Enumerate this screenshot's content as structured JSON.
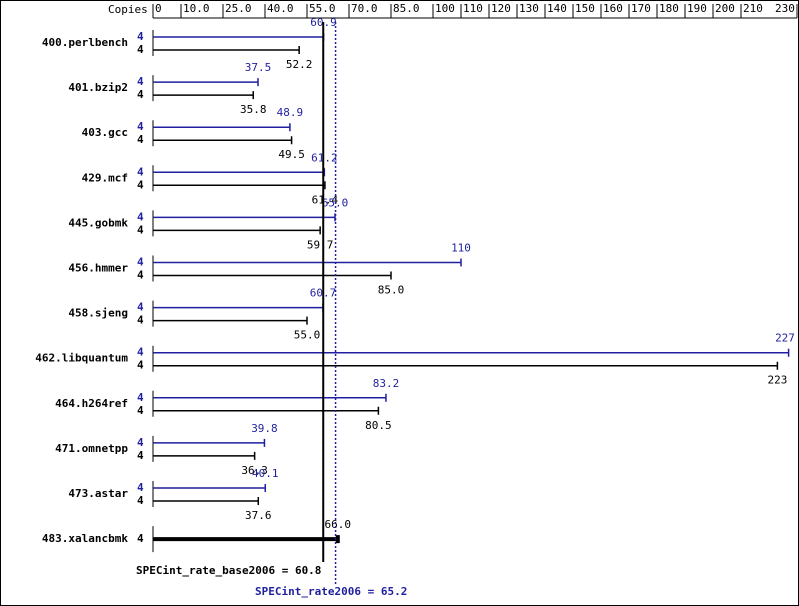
{
  "chart_data": {
    "type": "spec-bar",
    "copies_label": "Copies",
    "categories": [
      "400.perlbench",
      "401.bzip2",
      "403.gcc",
      "429.mcf",
      "445.gobmk",
      "456.hmmer",
      "458.sjeng",
      "462.libquantum",
      "464.h264ref",
      "471.omnetpp",
      "473.astar",
      "483.xalancbmk"
    ],
    "series": [
      {
        "color": "#1f1f9f",
        "copies": [
          4,
          4,
          4,
          4,
          4,
          4,
          4,
          4,
          4,
          4,
          4,
          null
        ],
        "values": [
          60.9,
          37.5,
          48.9,
          61.2,
          65.0,
          110,
          60.7,
          227,
          83.2,
          39.8,
          40.1,
          null
        ],
        "value_labels": [
          "60.9",
          "37.5",
          "48.9",
          "61.2",
          "65.0",
          "110",
          "60.7",
          "227",
          "83.2",
          "39.8",
          "40.1",
          null
        ]
      },
      {
        "color": "#000000",
        "copies": [
          4,
          4,
          4,
          4,
          4,
          4,
          4,
          4,
          4,
          4,
          4,
          4
        ],
        "values": [
          52.2,
          35.8,
          49.5,
          61.4,
          59.7,
          85.0,
          55.0,
          223,
          80.5,
          36.3,
          37.6,
          66.0
        ],
        "value_labels": [
          "52.2",
          "35.8",
          "49.5",
          "61.4",
          "59.7",
          "85.0",
          "55.0",
          "223",
          "80.5",
          "36.3",
          "37.6",
          "66.0"
        ]
      }
    ],
    "reference_lines": [
      {
        "label": "SPECint_rate_base2006 = 60.8",
        "value": 60.8,
        "color": "#000000",
        "style": "solid"
      },
      {
        "label": "SPECint_rate2006 = 65.2",
        "value": 65.2,
        "color": "#1f1f9f",
        "style": "dotted"
      }
    ],
    "xlim": [
      0,
      230
    ],
    "xticks": [
      0,
      {
        "value": 10,
        "label": "10.0"
      },
      {
        "value": 25,
        "label": "25.0"
      },
      {
        "value": 40,
        "label": "40.0"
      },
      {
        "value": 55,
        "label": "55.0"
      },
      {
        "value": 70,
        "label": "70.0"
      },
      {
        "value": 85,
        "label": "85.0"
      },
      100,
      110,
      120,
      130,
      140,
      150,
      160,
      170,
      180,
      190,
      200,
      210,
      230
    ]
  }
}
